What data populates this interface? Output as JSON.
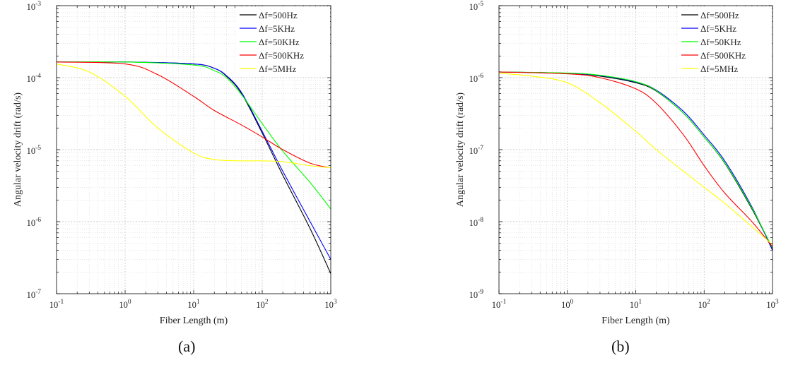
{
  "chart_data": [
    {
      "type": "line",
      "panel_label": "(a)",
      "xlabel": "Fiber Length (m)",
      "ylabel": "Angular velocity drift (rad/s)",
      "xscale": "log",
      "yscale": "log",
      "xlim": [
        0.1,
        1000
      ],
      "ylim": [
        1e-07,
        0.001
      ],
      "x_tick_labels": [
        "10-1",
        "100",
        "101",
        "102",
        "103"
      ],
      "y_tick_labels": [
        "10-7",
        "10-6",
        "10-5",
        "10-4",
        "10-3"
      ],
      "grid": true,
      "legend": "top-right",
      "series": [
        {
          "name": "Δf=500Hz",
          "color": "#000000",
          "x": [
            0.1,
            1,
            10,
            20,
            30,
            50,
            100,
            200,
            500,
            1000
          ],
          "y": [
            0.000165,
            0.000165,
            0.000155,
            0.000135,
            0.000105,
            6e-05,
            1.7e-05,
            4.4e-06,
            8e-07,
            1.9e-07
          ]
        },
        {
          "name": "Δf=5KHz",
          "color": "#0000ff",
          "x": [
            0.1,
            1,
            10,
            20,
            30,
            50,
            100,
            200,
            500,
            1000
          ],
          "y": [
            0.000165,
            0.000165,
            0.000155,
            0.000135,
            0.000107,
            6.2e-05,
            1.8e-05,
            5e-06,
            1e-06,
            3e-07
          ]
        },
        {
          "name": "Δf=50KHz",
          "color": "#00ff00",
          "x": [
            0.1,
            1,
            10,
            20,
            30,
            50,
            100,
            200,
            500,
            1000
          ],
          "y": [
            0.000165,
            0.000165,
            0.00015,
            0.000125,
            0.0001,
            5.8e-05,
            2.3e-05,
            9.5e-06,
            3.5e-06,
            1.5e-06
          ]
        },
        {
          "name": "Δf=500KHz",
          "color": "#ff0000",
          "x": [
            0.1,
            1,
            3,
            10,
            20,
            50,
            100,
            200,
            500,
            1000
          ],
          "y": [
            0.000165,
            0.000155,
            0.00011,
            5.5e-05,
            3.5e-05,
            2.2e-05,
            1.5e-05,
            1e-05,
            6.5e-06,
            5.6e-06
          ]
        },
        {
          "name": "Δf=5MHz",
          "color": "#ffff00",
          "x": [
            0.1,
            0.3,
            1,
            3,
            10,
            20,
            50,
            100,
            200,
            500,
            1000
          ],
          "y": [
            0.000155,
            0.00012,
            5.5e-05,
            2e-05,
            9e-06,
            7.3e-06,
            7e-06,
            7e-06,
            6.8e-06,
            6e-06,
            5.6e-06
          ]
        }
      ]
    },
    {
      "type": "line",
      "panel_label": "(b)",
      "xlabel": "Fiber Length (m)",
      "ylabel": "Angular velocity drift (rad/s)",
      "xscale": "log",
      "yscale": "log",
      "xlim": [
        0.1,
        1000
      ],
      "ylim": [
        1e-09,
        1e-05
      ],
      "x_tick_labels": [
        "10-1",
        "100",
        "101",
        "102",
        "103"
      ],
      "y_tick_labels": [
        "10-9",
        "10-8",
        "10-7",
        "10-6",
        "10-5"
      ],
      "grid": true,
      "legend": "top-right",
      "series": [
        {
          "name": "Δf=500Hz",
          "color": "#000000",
          "x": [
            0.1,
            1,
            3,
            10,
            20,
            50,
            100,
            200,
            500,
            1000
          ],
          "y": [
            1.2e-06,
            1.15e-06,
            1.05e-06,
            8.5e-07,
            6.5e-07,
            3.2e-07,
            1.5e-07,
            6.5e-08,
            1.5e-08,
            4.2e-09
          ]
        },
        {
          "name": "Δf=5KHz",
          "color": "#0000ff",
          "x": [
            0.1,
            1,
            3,
            10,
            20,
            50,
            100,
            200,
            500,
            1000
          ],
          "y": [
            1.2e-06,
            1.15e-06,
            1.07e-06,
            8.7e-07,
            6.7e-07,
            3.4e-07,
            1.6e-07,
            7e-08,
            1.6e-08,
            4e-09
          ]
        },
        {
          "name": "Δf=50KHz",
          "color": "#00ff00",
          "x": [
            0.1,
            1,
            3,
            10,
            20,
            50,
            100,
            200,
            500,
            1000
          ],
          "y": [
            1.2e-06,
            1.16e-06,
            1.08e-06,
            8.8e-07,
            6.6e-07,
            3.2e-07,
            1.5e-07,
            6.6e-08,
            1.55e-08,
            4.3e-09
          ]
        },
        {
          "name": "Δf=500KHz",
          "color": "#ff0000",
          "x": [
            0.1,
            1,
            3,
            10,
            20,
            50,
            100,
            200,
            500,
            1000
          ],
          "y": [
            1.2e-06,
            1.13e-06,
            1e-06,
            7e-07,
            4.4e-07,
            1.6e-07,
            6e-08,
            2.5e-08,
            1e-08,
            4.5e-09
          ]
        },
        {
          "name": "Δf=5MHz",
          "color": "#ffff00",
          "x": [
            0.1,
            0.3,
            1,
            3,
            10,
            20,
            50,
            100,
            200,
            500,
            1000
          ],
          "y": [
            1.15e-06,
            1.05e-06,
            8.5e-07,
            4.5e-07,
            1.8e-07,
            1e-07,
            5e-08,
            3e-08,
            1.8e-08,
            8.5e-09,
            4.8e-09
          ]
        }
      ]
    }
  ]
}
